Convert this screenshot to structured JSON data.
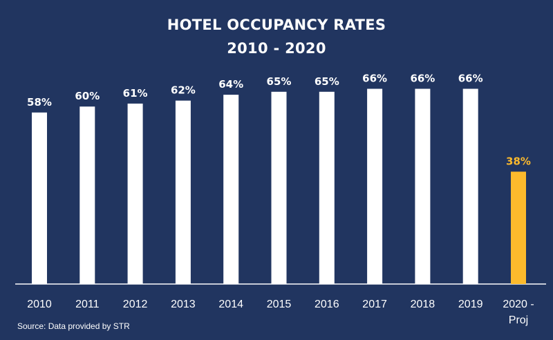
{
  "title_line1": "HOTEL OCCUPANCY RATES",
  "title_line2": "2010 - 2020",
  "source": "Source: Data provided by STR",
  "colors": {
    "background": "#213560",
    "bar": "#ffffff",
    "highlight_bar": "#FDBA2C",
    "text": "#ffffff"
  },
  "chart_data": {
    "type": "bar",
    "title": "HOTEL OCCUPANCY RATES 2010 - 2020",
    "categories": [
      "2010",
      "2011",
      "2012",
      "2013",
      "2014",
      "2015",
      "2016",
      "2017",
      "2018",
      "2019",
      "2020 - Proj"
    ],
    "values": [
      58,
      60,
      61,
      62,
      64,
      65,
      65,
      66,
      66,
      66,
      38
    ],
    "data_labels": [
      "58%",
      "60%",
      "61%",
      "62%",
      "64%",
      "65%",
      "65%",
      "66%",
      "66%",
      "66%",
      "38%"
    ],
    "highlight_index": 10,
    "unit": "%",
    "ylim": [
      0,
      100
    ],
    "grid": false,
    "legend": false
  }
}
